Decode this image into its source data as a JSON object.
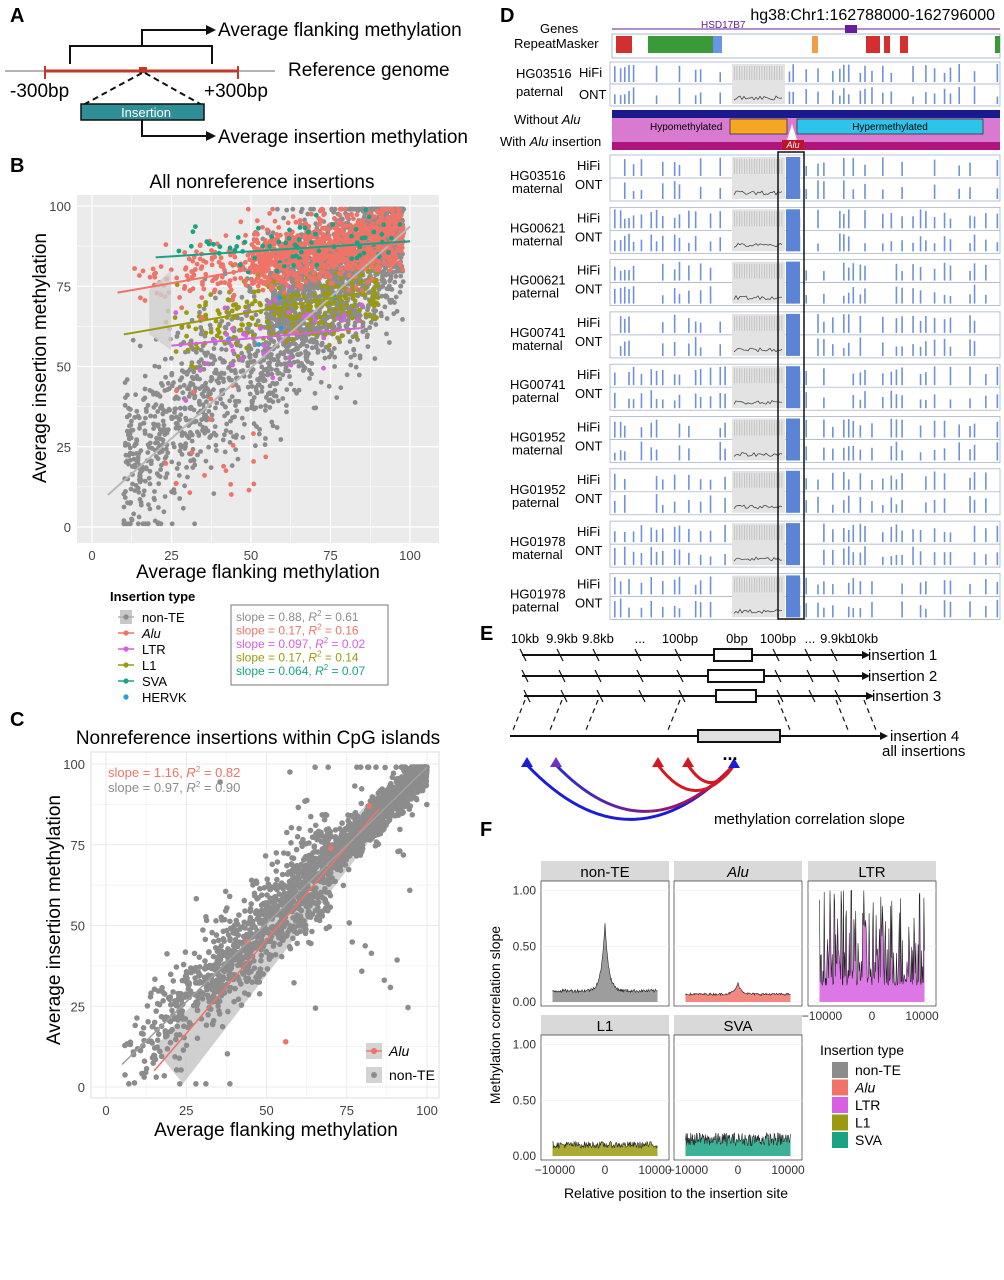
{
  "panel_letters": [
    "A",
    "B",
    "C",
    "D",
    "E",
    "F"
  ],
  "panelA": {
    "flank_label": "Average flanking methylation",
    "ref_label": "Reference genome",
    "left_label": "-300bp",
    "right_label": "+300bp",
    "box_label": "Insertion",
    "ins_label": "Average insertion methylation"
  },
  "panelB": {
    "chart_data": {
      "type": "scatter",
      "title": "All nonreference insertions",
      "xlabel": "Average flanking methylation",
      "ylabel": "Average insertion methylation",
      "xlim": [
        0,
        100
      ],
      "ylim": [
        0,
        100
      ],
      "xticks": [
        "0",
        "25",
        "50",
        "75",
        "100"
      ],
      "yticks": [
        "0",
        "25",
        "50",
        "75",
        "100"
      ],
      "grid": true,
      "legend_title": "Insertion type",
      "series": [
        {
          "name": "non-TE",
          "color": "#8c8c8c",
          "fit_x": [
            5,
            100
          ],
          "fit_y": [
            10,
            93.6
          ],
          "slope": 0.88,
          "r2": 0.61
        },
        {
          "name": "Alu",
          "color": "#f07368",
          "fit_x": [
            8,
            100
          ],
          "fit_y": [
            73,
            89
          ],
          "slope": 0.17,
          "r2": 0.16
        },
        {
          "name": "LTR",
          "color": "#d660e0",
          "fit_x": [
            25,
            85
          ],
          "fit_y": [
            56.5,
            62
          ],
          "slope": 0.097,
          "r2": 0.02
        },
        {
          "name": "L1",
          "color": "#9a9a10",
          "fit_x": [
            10,
            85
          ],
          "fit_y": [
            60,
            73
          ],
          "slope": 0.17,
          "r2": 0.14
        },
        {
          "name": "SVA",
          "color": "#1aa383",
          "fit_x": [
            20,
            100
          ],
          "fit_y": [
            84,
            89
          ],
          "slope": 0.064,
          "r2": 0.07
        },
        {
          "name": "HERVK",
          "color": "#1fa0d8"
        }
      ],
      "stats_text": [
        {
          "slope": "slope = 0.88, ",
          "r2": "R",
          "sup": "2",
          "val": " = 0.61",
          "color": "#8c8c8c"
        },
        {
          "slope": "slope = 0.17, ",
          "r2": "R",
          "sup": "2",
          "val": " = 0.16",
          "color": "#f07368"
        },
        {
          "slope": "slope = 0.097, ",
          "r2": "R",
          "sup": "2",
          "val": " = 0.02",
          "color": "#d660e0"
        },
        {
          "slope": "slope = 0.17, ",
          "r2": "R",
          "sup": "2",
          "val": " = 0.14",
          "color": "#9a9a10"
        },
        {
          "slope": "slope = 0.064, ",
          "r2": "R",
          "sup": "2",
          "val": " = 0.07",
          "color": "#1aa383"
        }
      ]
    }
  },
  "panelC": {
    "chart_data": {
      "type": "scatter",
      "title": "Nonreference insertions within CpG islands",
      "xlabel": "Average flanking methylation",
      "ylabel": "Average insertion methylation",
      "xlim": [
        0,
        100
      ],
      "ylim": [
        0,
        100
      ],
      "xticks": [
        "0",
        "25",
        "50",
        "75",
        "100"
      ],
      "yticks": [
        "0",
        "25",
        "50",
        "75",
        "100"
      ],
      "grid": true,
      "series": [
        {
          "name": "Alu",
          "color": "#f07368",
          "fit_x": [
            15,
            85
          ],
          "fit_y": [
            5,
            86
          ],
          "slope": 1.16,
          "r2": 0.82
        },
        {
          "name": "non-TE",
          "color": "#8c8c8c",
          "fit_x": [
            5,
            100
          ],
          "fit_y": [
            7,
            99
          ],
          "slope": 0.97,
          "r2": 0.9
        }
      ],
      "stats_text": [
        {
          "slope": "slope = 1.16, ",
          "r2": "R",
          "sup": "2",
          "val": " = 0.82",
          "color": "#f07368"
        },
        {
          "slope": "slope = 0.97, ",
          "r2": "R",
          "sup": "2",
          "val": " = 0.90",
          "color": "#8c8c8c"
        }
      ]
    }
  },
  "panelD": {
    "coords": "hg38:Chr1:162788000-162796000",
    "genes_label": "Genes",
    "gene_name": "HSD17B7",
    "repeat_label": "RepeatMasker",
    "without_label": "Without ",
    "with_label": "With ",
    "with_suffix": " insertion",
    "alu": "Alu",
    "hypo_label": "Hypomethylated",
    "hyper_label": "Hypermethylated",
    "hifi": "HiFi",
    "ont": "ONT",
    "top_sample": {
      "id": "HG03516",
      "hap": "paternal"
    },
    "samples": [
      {
        "id": "HG03516",
        "hap": "maternal"
      },
      {
        "id": "HG00621",
        "hap": "maternal"
      },
      {
        "id": "HG00621",
        "hap": "paternal"
      },
      {
        "id": "HG00741",
        "hap": "maternal"
      },
      {
        "id": "HG00741",
        "hap": "paternal"
      },
      {
        "id": "HG01952",
        "hap": "maternal"
      },
      {
        "id": "HG01952",
        "hap": "paternal"
      },
      {
        "id": "HG01978",
        "hap": "maternal"
      },
      {
        "id": "HG01978",
        "hap": "paternal"
      }
    ]
  },
  "panelE": {
    "ticks": [
      "10kb",
      "9.9kb",
      "9.8kb",
      "...",
      "100bp",
      "0bp",
      "100bp",
      "...",
      "9.9kb",
      "10kb"
    ],
    "rows": [
      "insertion 1",
      "insertion 2",
      "insertion 3",
      "insertion 4",
      "all insertions"
    ],
    "dots": "...",
    "caption": "methylation correlation slope"
  },
  "panelF": {
    "chart_data": {
      "type": "area",
      "ylabel": "Methylation correlation slope",
      "xlabel": "Relative position to the insertion site",
      "xlim": [
        -12000,
        12000
      ],
      "ylim": [
        0,
        1.05
      ],
      "xticks": [
        "−10000",
        "0",
        "10000"
      ],
      "yticks": [
        "0.00",
        "0.50",
        "1.00"
      ],
      "facets": [
        {
          "name": "non-TE",
          "color": "#8c8c8c",
          "base": 0.1,
          "peak": 0.62,
          "noise": 0.03
        },
        {
          "name": "Alu",
          "color": "#f07368",
          "base": 0.07,
          "peak": 0.1,
          "noise": 0.02
        },
        {
          "name": "LTR",
          "color": "#d660e0",
          "base": 0.4,
          "peak": 0.0,
          "noise": 0.45
        },
        {
          "name": "L1",
          "color": "#9a9a10",
          "base": 0.1,
          "peak": 0.0,
          "noise": 0.06
        },
        {
          "name": "SVA",
          "color": "#1aa383",
          "base": 0.15,
          "peak": 0.0,
          "noise": 0.12
        }
      ],
      "legend_title": "Insertion type",
      "legend": [
        {
          "name": "non-TE",
          "color": "#8c8c8c"
        },
        {
          "name": "Alu",
          "color": "#f07368"
        },
        {
          "name": "LTR",
          "color": "#d660e0"
        },
        {
          "name": "L1",
          "color": "#9a9a10"
        },
        {
          "name": "SVA",
          "color": "#1aa383"
        }
      ]
    }
  }
}
